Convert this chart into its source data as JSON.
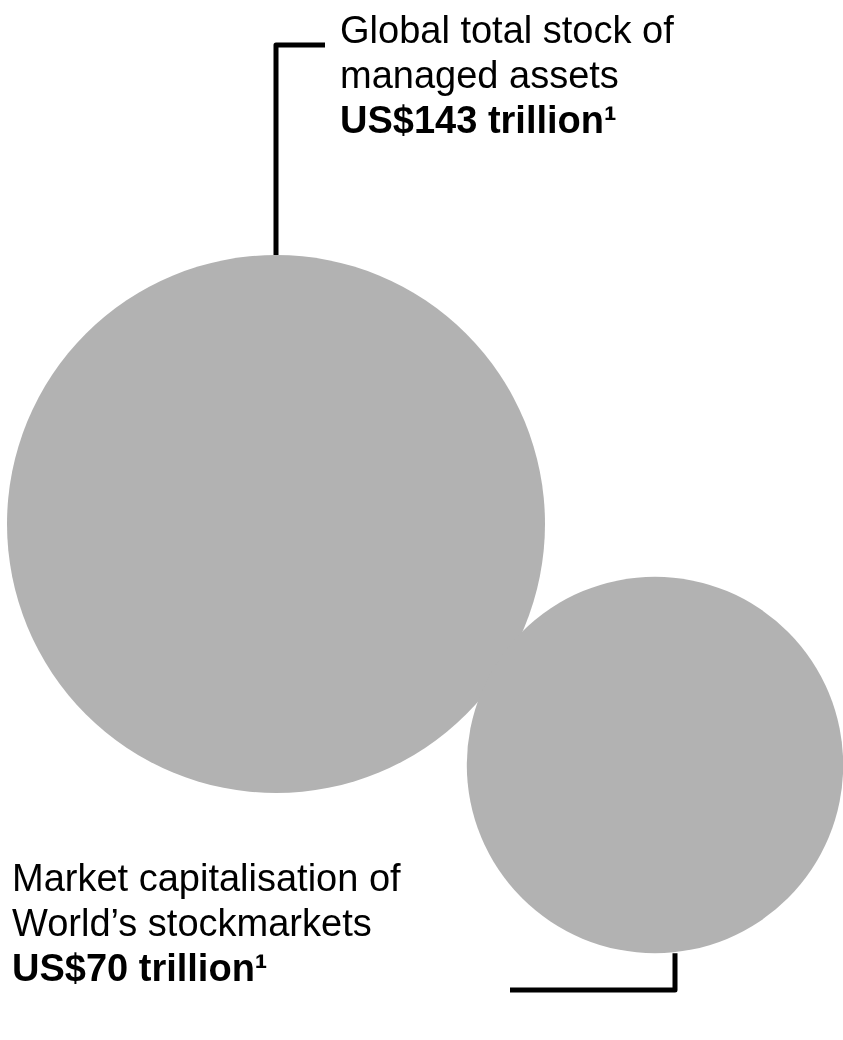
{
  "chart_data": {
    "type": "other",
    "categories": [
      "Global total stock of managed assets",
      "Market capitalisation of World’s stockmarkets"
    ],
    "values": [
      143,
      70
    ],
    "value_labels": [
      "US$143 trillion¹",
      "US$70 trillion¹"
    ],
    "color": "#b2b2b2"
  }
}
